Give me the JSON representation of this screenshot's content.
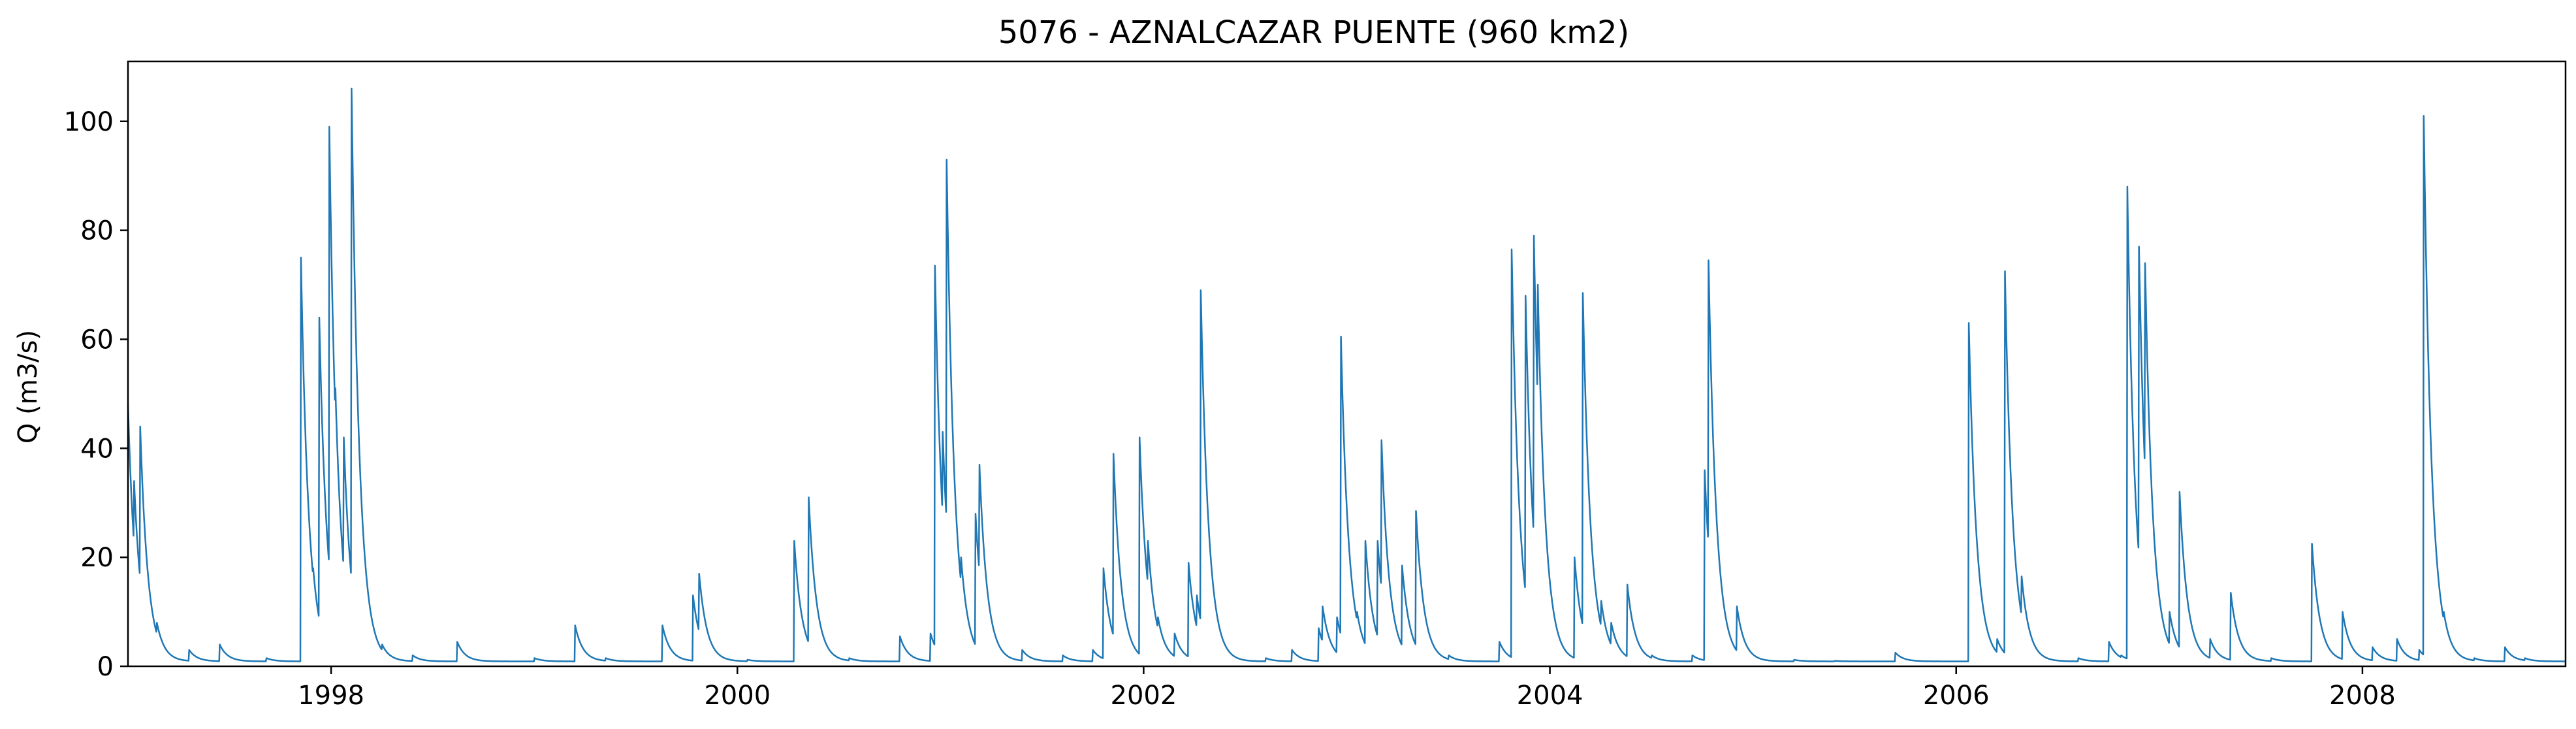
{
  "chart_data": {
    "type": "line",
    "title": "5076 - AZNALCAZAR PUENTE (960 km2)",
    "xlabel": "",
    "ylabel": "Q (m3/s)",
    "xlim": [
      1997.0,
      2009.0
    ],
    "ylim": [
      0,
      111
    ],
    "grid": false,
    "legend": "none",
    "x_ticks": [
      1998,
      2000,
      2002,
      2004,
      2006,
      2008
    ],
    "x_tick_labels": [
      "1998",
      "2000",
      "2002",
      "2004",
      "2006",
      "2008"
    ],
    "y_ticks": [
      0,
      20,
      40,
      60,
      80,
      100
    ],
    "y_tick_labels": [
      "0",
      "20",
      "40",
      "60",
      "80",
      "100"
    ],
    "series": [
      {
        "name": "Q",
        "color": "#1f77b4",
        "baseline": 0.9,
        "recession_days": 14,
        "events": [
          [
            1997.0,
            48
          ],
          [
            1997.03,
            34
          ],
          [
            1997.06,
            44
          ],
          [
            1997.09,
            13
          ],
          [
            1997.14,
            8
          ],
          [
            1997.3,
            3
          ],
          [
            1997.45,
            4
          ],
          [
            1997.68,
            1.5
          ],
          [
            1997.85,
            75
          ],
          [
            1997.87,
            44
          ],
          [
            1997.91,
            18
          ],
          [
            1997.94,
            64
          ],
          [
            1997.98,
            12
          ],
          [
            1997.99,
            99
          ],
          [
            1998.0,
            62
          ],
          [
            1998.02,
            51
          ],
          [
            1998.06,
            42
          ],
          [
            1998.08,
            25
          ],
          [
            1998.1,
            106
          ],
          [
            1998.13,
            16
          ],
          [
            1998.16,
            11
          ],
          [
            1998.25,
            4
          ],
          [
            1998.4,
            2
          ],
          [
            1998.62,
            4.5
          ],
          [
            1999.0,
            1.5
          ],
          [
            1999.2,
            7.5
          ],
          [
            1999.35,
            1.5
          ],
          [
            1999.63,
            7.5
          ],
          [
            1999.78,
            13
          ],
          [
            1999.81,
            17
          ],
          [
            2000.05,
            1.2
          ],
          [
            2000.28,
            23
          ],
          [
            2000.35,
            31
          ],
          [
            2000.55,
            1.5
          ],
          [
            2000.8,
            5.5
          ],
          [
            2000.95,
            6
          ],
          [
            2000.97,
            73.5
          ],
          [
            2001.01,
            43
          ],
          [
            2001.03,
            93
          ],
          [
            2001.06,
            26
          ],
          [
            2001.1,
            20
          ],
          [
            2001.17,
            28
          ],
          [
            2001.19,
            37
          ],
          [
            2001.25,
            8
          ],
          [
            2001.4,
            3
          ],
          [
            2001.6,
            2
          ],
          [
            2001.75,
            3
          ],
          [
            2001.8,
            18
          ],
          [
            2001.85,
            39
          ],
          [
            2001.9,
            6
          ],
          [
            2001.98,
            42
          ],
          [
            2002.02,
            23
          ],
          [
            2002.07,
            9
          ],
          [
            2002.15,
            6
          ],
          [
            2002.22,
            19
          ],
          [
            2002.26,
            13
          ],
          [
            2002.28,
            69
          ],
          [
            2002.4,
            3
          ],
          [
            2002.6,
            1.5
          ],
          [
            2002.73,
            3
          ],
          [
            2002.86,
            7
          ],
          [
            2002.88,
            11
          ],
          [
            2002.95,
            9
          ],
          [
            2002.97,
            60.5
          ],
          [
            2002.99,
            28
          ],
          [
            2003.03,
            9
          ],
          [
            2003.05,
            10
          ],
          [
            2003.09,
            23
          ],
          [
            2003.12,
            6
          ],
          [
            2003.15,
            23
          ],
          [
            2003.17,
            41.5
          ],
          [
            2003.21,
            9
          ],
          [
            2003.27,
            18.5
          ],
          [
            2003.34,
            28.5
          ],
          [
            2003.5,
            2
          ],
          [
            2003.75,
            4.5
          ],
          [
            2003.81,
            76.5
          ],
          [
            2003.83,
            30
          ],
          [
            2003.88,
            68
          ],
          [
            2003.92,
            79
          ],
          [
            2003.94,
            70
          ],
          [
            2003.96,
            25
          ],
          [
            2004.02,
            7
          ],
          [
            2004.12,
            20
          ],
          [
            2004.16,
            68.5
          ],
          [
            2004.21,
            16
          ],
          [
            2004.25,
            12
          ],
          [
            2004.3,
            8
          ],
          [
            2004.38,
            15
          ],
          [
            2004.5,
            2
          ],
          [
            2004.7,
            2
          ],
          [
            2004.76,
            36
          ],
          [
            2004.78,
            74.5
          ],
          [
            2004.84,
            15
          ],
          [
            2004.92,
            11
          ],
          [
            2005.2,
            1.2
          ],
          [
            2005.4,
            1
          ],
          [
            2005.7,
            2.5
          ],
          [
            2005.8,
            1
          ],
          [
            2006.06,
            63
          ],
          [
            2006.15,
            3
          ],
          [
            2006.2,
            5
          ],
          [
            2006.24,
            72.5
          ],
          [
            2006.32,
            16.5
          ],
          [
            2006.6,
            1.5
          ],
          [
            2006.75,
            4.5
          ],
          [
            2006.81,
            2
          ],
          [
            2006.84,
            88
          ],
          [
            2006.86,
            37
          ],
          [
            2006.88,
            22
          ],
          [
            2006.9,
            77
          ],
          [
            2006.93,
            74
          ],
          [
            2006.97,
            19
          ],
          [
            2007.05,
            10
          ],
          [
            2007.1,
            32
          ],
          [
            2007.15,
            8
          ],
          [
            2007.25,
            5
          ],
          [
            2007.35,
            13.5
          ],
          [
            2007.55,
            1.5
          ],
          [
            2007.75,
            22.5
          ],
          [
            2007.9,
            10
          ],
          [
            2008.05,
            3.5
          ],
          [
            2008.17,
            5
          ],
          [
            2008.28,
            3
          ],
          [
            2008.3,
            101
          ],
          [
            2008.33,
            33.5
          ],
          [
            2008.4,
            10
          ],
          [
            2008.55,
            1.5
          ],
          [
            2008.7,
            3.5
          ],
          [
            2008.8,
            1.5
          ]
        ]
      }
    ]
  }
}
